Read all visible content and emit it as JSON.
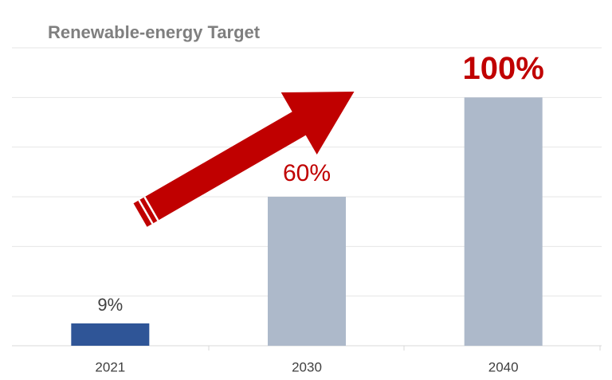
{
  "chart_data": {
    "type": "bar",
    "title": "Renewable-energy Target",
    "categories": [
      "2021",
      "2030",
      "2040"
    ],
    "values": [
      9,
      60,
      100
    ],
    "value_labels": [
      "9%",
      "60%",
      "100%"
    ],
    "colors": [
      "#2f5597",
      "#adb9ca",
      "#adb9ca"
    ],
    "label_colors": [
      "#404040",
      "#c00000",
      "#c00000"
    ],
    "ylim": [
      0,
      120
    ],
    "yticks": [
      0,
      20,
      40,
      60,
      80,
      100,
      120
    ],
    "grid": true
  }
}
